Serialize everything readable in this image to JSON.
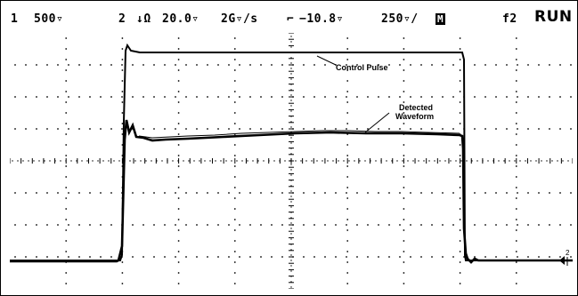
{
  "status_bar": {
    "ch1_number": "1",
    "ch1_scale": "500▿",
    "ch2_number": "2",
    "ch2_coupling_icon": "dc-coupling-icon",
    "ch2_coupling": "↓Ω",
    "ch2_scale": "20.0▿",
    "sample_rate": "2G▿/s",
    "trigger_icon": "trigger-edge-icon",
    "trigger_level": "−10.8▿",
    "timebase": "250▿/",
    "mode_badge": "M",
    "function": "f2",
    "run_state": "RUN"
  },
  "markers": {
    "right_marker": "2"
  },
  "annotations": {
    "control_pulse": "Control Pulse",
    "detected_line1": "Detected",
    "detected_line2": "Waveform"
  },
  "colors": {
    "trace": "#000000",
    "grid": "#000000",
    "background": "#ffffff"
  }
}
